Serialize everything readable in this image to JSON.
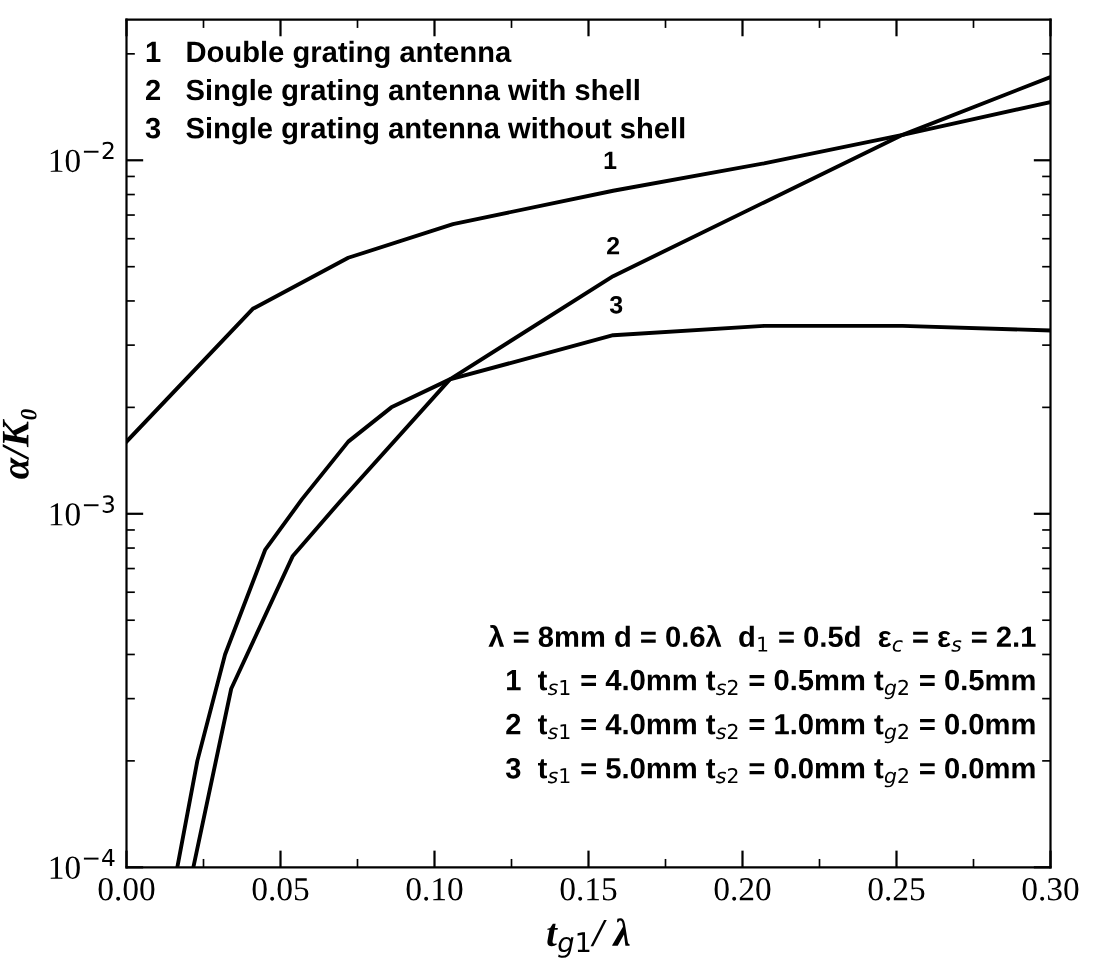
{
  "chart_data": {
    "type": "line",
    "xlabel": "t$_{g1}$/ λ",
    "ylabel": "α/K₀",
    "log": "y",
    "grid": false,
    "legend": false,
    "marker": "none",
    "line_style": "solid",
    "xlim": [
      0.0,
      0.3
    ],
    "ylim": [
      0.0001,
      0.025
    ],
    "xticks": [
      {
        "value": 0.0,
        "label": "0.00"
      },
      {
        "value": 0.05,
        "label": "0.05"
      },
      {
        "value": 0.1,
        "label": "0.10"
      },
      {
        "value": 0.15,
        "label": "0.15"
      },
      {
        "value": 0.2,
        "label": "0.20"
      },
      {
        "value": 0.25,
        "label": "0.25"
      },
      {
        "value": 0.3,
        "label": "0.30"
      }
    ],
    "yticks": [
      {
        "value": 0.0001,
        "label": "10$^{−4}$"
      },
      {
        "value": 0.001,
        "label": "10$^{−3}$"
      },
      {
        "value": 0.01,
        "label": "10$^{−2}$"
      }
    ],
    "series": [
      {
        "color": "#000000",
        "x": [
          0.0,
          0.041,
          0.072,
          0.106,
          0.158,
          0.207,
          0.252,
          0.3
        ],
        "values": [
          0.0016,
          0.0038,
          0.0053,
          0.0066,
          0.0082,
          0.0098,
          0.0118,
          0.0146
        ]
      },
      {
        "color": "#000000",
        "x": [
          0.0217,
          0.034,
          0.054,
          0.07,
          0.105,
          0.158,
          0.207,
          0.252,
          0.3
        ],
        "values": [
          0.0001,
          0.00032,
          0.00076,
          0.0011,
          0.0024,
          0.0047,
          0.0076,
          0.0118,
          0.0172
        ]
      },
      {
        "color": "#000000",
        "x": [
          0.0165,
          0.023,
          0.032,
          0.045,
          0.057,
          0.072,
          0.086,
          0.105,
          0.158,
          0.207,
          0.252,
          0.3
        ],
        "values": [
          0.0001,
          0.0002,
          0.0004,
          0.00079,
          0.0011,
          0.0016,
          0.002,
          0.0024,
          0.0032,
          0.0034,
          0.0034,
          0.0033
        ]
      }
    ],
    "annotations": [
      "1   Double grating antenna",
      "2   Single grating antenna with shell",
      "3   Single grating antenna without shell",
      "λ = 8mm d = 0.6λ  d$_{1}$ = 0.5d  ε$_{c}$ = ε$_{s}$ = 2.1",
      "1  t$_{s1}$ = 4.0mm t$_{s2}$ = 0.5mm t$_{g2}$ = 0.5mm",
      "2  t$_{s1}$ = 4.0mm t$_{s2}$ = 1.0mm t$_{g2}$ = 0.0mm",
      "3  t$_{s1}$ = 5.0mm t$_{s2}$ = 0.0mm t$_{g2}$ = 0.0mm",
      {
        "text": "1",
        "x": 0.157,
        "y": 0.0082
      },
      {
        "text": "2",
        "x": 0.158,
        "y": 0.0047
      },
      {
        "text": "3",
        "x": 0.159,
        "y": 0.0032
      }
    ]
  }
}
